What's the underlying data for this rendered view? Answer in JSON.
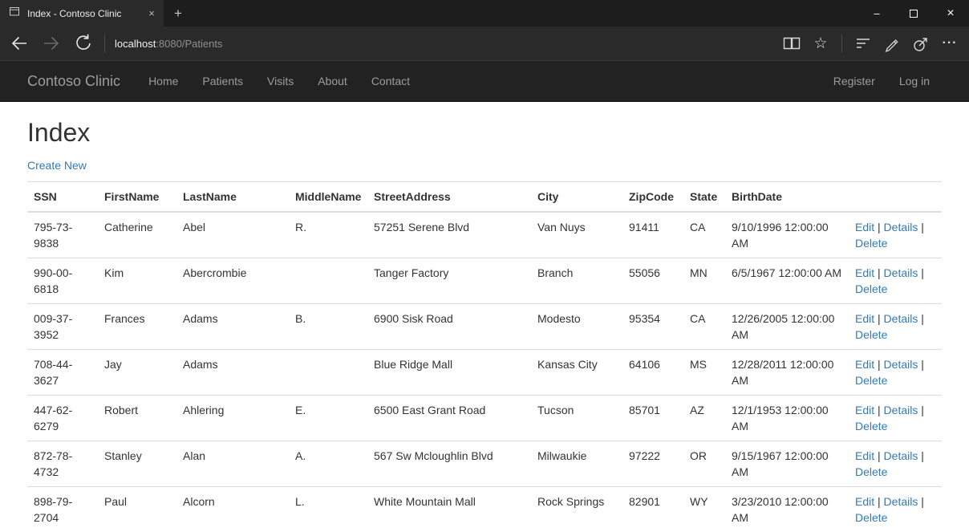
{
  "window": {
    "tab_title": "Index - Contoso Clinic"
  },
  "icons": {
    "tab_close": "×",
    "new_tab": "+",
    "minimize": "–",
    "close": "×",
    "star": "☆",
    "more": "···"
  },
  "address_bar": {
    "url_host": "localhost",
    "url_rest": ":8080/Patients"
  },
  "site": {
    "brand": "Contoso Clinic",
    "nav": [
      "Home",
      "Patients",
      "Visits",
      "About",
      "Contact"
    ],
    "nav_right": [
      "Register",
      "Log in"
    ]
  },
  "page": {
    "heading": "Index",
    "create_new": "Create New"
  },
  "patients_table": {
    "columns": [
      "SSN",
      "FirstName",
      "LastName",
      "MiddleName",
      "StreetAddress",
      "City",
      "ZipCode",
      "State",
      "BirthDate"
    ],
    "row_actions": [
      "Edit",
      "Details",
      "Delete"
    ],
    "action_separator": " | ",
    "rows": [
      [
        "795-73-9838",
        "Catherine",
        "Abel",
        "R.",
        "57251 Serene Blvd",
        "Van Nuys",
        "91411",
        "CA",
        "9/10/1996 12:00:00 AM"
      ],
      [
        "990-00-6818",
        "Kim",
        "Abercrombie",
        "",
        "Tanger Factory",
        "Branch",
        "55056",
        "MN",
        "6/5/1967 12:00:00 AM"
      ],
      [
        "009-37-3952",
        "Frances",
        "Adams",
        "B.",
        "6900 Sisk Road",
        "Modesto",
        "95354",
        "CA",
        "12/26/2005 12:00:00 AM"
      ],
      [
        "708-44-3627",
        "Jay",
        "Adams",
        "",
        "Blue Ridge Mall",
        "Kansas City",
        "64106",
        "MS",
        "12/28/2011 12:00:00 AM"
      ],
      [
        "447-62-6279",
        "Robert",
        "Ahlering",
        "E.",
        "6500 East Grant Road",
        "Tucson",
        "85701",
        "AZ",
        "12/1/1953 12:00:00 AM"
      ],
      [
        "872-78-4732",
        "Stanley",
        "Alan",
        "A.",
        "567 Sw Mcloughlin Blvd",
        "Milwaukie",
        "97222",
        "OR",
        "9/15/1967 12:00:00 AM"
      ],
      [
        "898-79-2704",
        "Paul",
        "Alcorn",
        "L.",
        "White Mountain Mall",
        "Rock Springs",
        "82901",
        "WY",
        "3/23/2010 12:00:00 AM"
      ]
    ]
  },
  "colors": {
    "titlebar": "#1d1d1d",
    "chrome": "#2a2a2a",
    "navbar": "#222222",
    "link": "#337ab7",
    "table_border": "#dddddd"
  }
}
